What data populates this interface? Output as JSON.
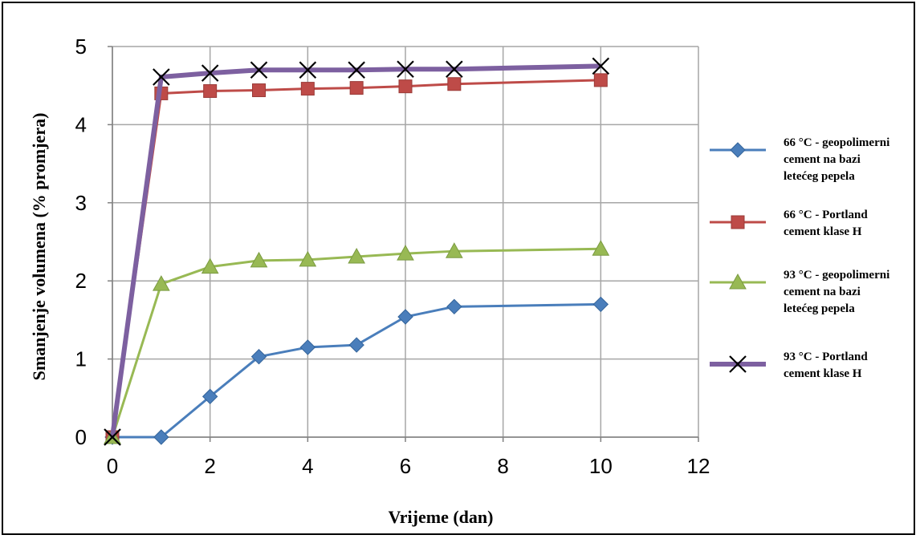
{
  "chart_data": {
    "type": "line",
    "title": "",
    "xlabel": "Vrijeme (dan)",
    "ylabel": "Smanjenje volumena (% promjera)",
    "xlim": [
      0,
      12
    ],
    "ylim": [
      0,
      5
    ],
    "xticks": [
      0,
      2,
      4,
      6,
      8,
      10,
      12
    ],
    "yticks": [
      0,
      1,
      2,
      3,
      4,
      5
    ],
    "grid": true,
    "legend_position": "right",
    "series": [
      {
        "name": "66 °C - geopolimerni cement na bazi letećeg pepela",
        "legend_lines": [
          "66 °C - geopolimerni",
          "cement na bazi",
          "letećeg pepela"
        ],
        "color": "#4a7ebb",
        "marker": "diamond",
        "x": [
          0,
          1,
          2,
          3,
          4,
          5,
          6,
          7,
          10
        ],
        "y": [
          0,
          0,
          0.52,
          1.03,
          1.15,
          1.18,
          1.54,
          1.67,
          1.7
        ]
      },
      {
        "name": "66 °C - Portland cement klase H",
        "legend_lines": [
          "66 °C - Portland",
          "cement klase H"
        ],
        "color": "#be4b48",
        "marker": "square",
        "x": [
          0,
          1,
          2,
          3,
          4,
          5,
          6,
          7,
          10
        ],
        "y": [
          0,
          4.4,
          4.43,
          4.44,
          4.46,
          4.47,
          4.49,
          4.52,
          4.57
        ]
      },
      {
        "name": "93 °C - geopolimerni cement na bazi letećeg pepela",
        "legend_lines": [
          "93 °C - geopolimerni",
          "cement na bazi",
          "letećeg pepela"
        ],
        "color": "#98b954",
        "marker": "triangle",
        "x": [
          0,
          1,
          2,
          3,
          4,
          5,
          6,
          7,
          10
        ],
        "y": [
          0,
          1.96,
          2.18,
          2.26,
          2.27,
          2.31,
          2.35,
          2.38,
          2.41
        ]
      },
      {
        "name": "93 °C - Portland cement klase H",
        "legend_lines": [
          "93 °C - Portland",
          "cement klase H"
        ],
        "color": "#7d60a0",
        "marker": "x",
        "x": [
          0,
          1,
          2,
          3,
          4,
          5,
          6,
          7,
          10
        ],
        "y": [
          0,
          4.61,
          4.66,
          4.7,
          4.7,
          4.7,
          4.71,
          4.71,
          4.75
        ]
      }
    ]
  }
}
